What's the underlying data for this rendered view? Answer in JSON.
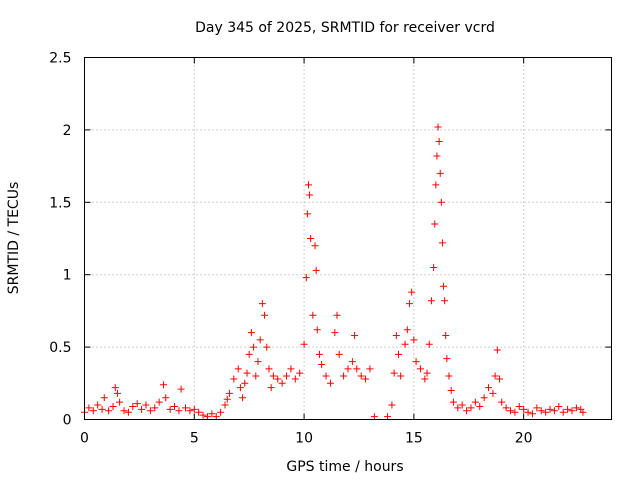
{
  "chart_data": {
    "type": "scatter",
    "title": "Day 345 of 2025, SRMTID for receiver vcrd",
    "xlabel": "GPS time / hours",
    "ylabel": "SRMTID / TECUs",
    "xlim": [
      0,
      24
    ],
    "ylim": [
      0,
      2.5
    ],
    "x_ticks": [
      0,
      5,
      10,
      15,
      20
    ],
    "x_tick_labels": [
      "0",
      "5",
      "10",
      "15",
      "20"
    ],
    "y_ticks": [
      0,
      0.5,
      1,
      1.5,
      2,
      2.5
    ],
    "y_tick_labels": [
      "0",
      "0.5",
      "1",
      "1.5",
      "2",
      "2.5"
    ],
    "grid": true,
    "marker": "+",
    "series_color": "#ff0000",
    "series": [
      {
        "name": "SRMTID",
        "points": [
          [
            0.0,
            0.05
          ],
          [
            0.2,
            0.08
          ],
          [
            0.4,
            0.06
          ],
          [
            0.6,
            0.1
          ],
          [
            0.8,
            0.07
          ],
          [
            0.9,
            0.15
          ],
          [
            1.1,
            0.06
          ],
          [
            1.3,
            0.09
          ],
          [
            1.4,
            0.22
          ],
          [
            1.5,
            0.18
          ],
          [
            1.6,
            0.12
          ],
          [
            1.8,
            0.06
          ],
          [
            2.0,
            0.05
          ],
          [
            2.2,
            0.09
          ],
          [
            2.4,
            0.11
          ],
          [
            2.6,
            0.07
          ],
          [
            2.8,
            0.1
          ],
          [
            3.0,
            0.06
          ],
          [
            3.2,
            0.08
          ],
          [
            3.4,
            0.12
          ],
          [
            3.6,
            0.24
          ],
          [
            3.7,
            0.15
          ],
          [
            3.9,
            0.07
          ],
          [
            4.1,
            0.09
          ],
          [
            4.3,
            0.06
          ],
          [
            4.4,
            0.21
          ],
          [
            4.6,
            0.08
          ],
          [
            4.8,
            0.06
          ],
          [
            5.0,
            0.07
          ],
          [
            5.2,
            0.05
          ],
          [
            5.4,
            0.03
          ],
          [
            5.6,
            0.02
          ],
          [
            5.8,
            0.04
          ],
          [
            6.0,
            0.02
          ],
          [
            6.2,
            0.05
          ],
          [
            6.4,
            0.1
          ],
          [
            6.5,
            0.14
          ],
          [
            6.6,
            0.18
          ],
          [
            6.8,
            0.28
          ],
          [
            7.0,
            0.35
          ],
          [
            7.1,
            0.22
          ],
          [
            7.2,
            0.15
          ],
          [
            7.3,
            0.25
          ],
          [
            7.4,
            0.32
          ],
          [
            7.5,
            0.45
          ],
          [
            7.6,
            0.6
          ],
          [
            7.7,
            0.5
          ],
          [
            7.8,
            0.3
          ],
          [
            7.9,
            0.4
          ],
          [
            8.0,
            0.55
          ],
          [
            8.1,
            0.8
          ],
          [
            8.2,
            0.72
          ],
          [
            8.3,
            0.5
          ],
          [
            8.4,
            0.35
          ],
          [
            8.5,
            0.22
          ],
          [
            8.6,
            0.3
          ],
          [
            8.8,
            0.28
          ],
          [
            9.0,
            0.25
          ],
          [
            9.2,
            0.3
          ],
          [
            9.4,
            0.35
          ],
          [
            9.6,
            0.28
          ],
          [
            9.8,
            0.32
          ],
          [
            10.0,
            0.52
          ],
          [
            10.1,
            0.98
          ],
          [
            10.15,
            1.42
          ],
          [
            10.2,
            1.62
          ],
          [
            10.25,
            1.55
          ],
          [
            10.3,
            1.25
          ],
          [
            10.4,
            0.72
          ],
          [
            10.5,
            1.2
          ],
          [
            10.55,
            1.03
          ],
          [
            10.6,
            0.62
          ],
          [
            10.7,
            0.45
          ],
          [
            10.8,
            0.38
          ],
          [
            11.0,
            0.3
          ],
          [
            11.2,
            0.25
          ],
          [
            11.4,
            0.6
          ],
          [
            11.5,
            0.72
          ],
          [
            11.6,
            0.45
          ],
          [
            11.8,
            0.3
          ],
          [
            12.0,
            0.35
          ],
          [
            12.2,
            0.4
          ],
          [
            12.3,
            0.58
          ],
          [
            12.4,
            0.35
          ],
          [
            12.6,
            0.3
          ],
          [
            12.8,
            0.28
          ],
          [
            13.0,
            0.35
          ],
          [
            13.2,
            0.02
          ],
          [
            13.8,
            0.02
          ],
          [
            14.0,
            0.1
          ],
          [
            14.1,
            0.32
          ],
          [
            14.2,
            0.58
          ],
          [
            14.3,
            0.45
          ],
          [
            14.4,
            0.3
          ],
          [
            14.6,
            0.52
          ],
          [
            14.7,
            0.62
          ],
          [
            14.8,
            0.8
          ],
          [
            14.9,
            0.88
          ],
          [
            15.0,
            0.55
          ],
          [
            15.1,
            0.4
          ],
          [
            15.3,
            0.35
          ],
          [
            15.5,
            0.28
          ],
          [
            15.6,
            0.32
          ],
          [
            15.7,
            0.52
          ],
          [
            15.8,
            0.82
          ],
          [
            15.9,
            1.05
          ],
          [
            15.95,
            1.35
          ],
          [
            16.0,
            1.62
          ],
          [
            16.05,
            1.82
          ],
          [
            16.1,
            2.02
          ],
          [
            16.15,
            1.92
          ],
          [
            16.2,
            1.7
          ],
          [
            16.25,
            1.5
          ],
          [
            16.3,
            1.22
          ],
          [
            16.35,
            0.92
          ],
          [
            16.4,
            0.82
          ],
          [
            16.45,
            0.58
          ],
          [
            16.5,
            0.42
          ],
          [
            16.6,
            0.3
          ],
          [
            16.7,
            0.2
          ],
          [
            16.8,
            0.12
          ],
          [
            17.0,
            0.08
          ],
          [
            17.2,
            0.1
          ],
          [
            17.4,
            0.06
          ],
          [
            17.6,
            0.08
          ],
          [
            17.8,
            0.12
          ],
          [
            18.0,
            0.09
          ],
          [
            18.2,
            0.15
          ],
          [
            18.4,
            0.22
          ],
          [
            18.6,
            0.18
          ],
          [
            18.7,
            0.3
          ],
          [
            18.8,
            0.48
          ],
          [
            18.9,
            0.28
          ],
          [
            19.0,
            0.12
          ],
          [
            19.2,
            0.08
          ],
          [
            19.4,
            0.06
          ],
          [
            19.6,
            0.05
          ],
          [
            19.8,
            0.09
          ],
          [
            20.0,
            0.07
          ],
          [
            20.2,
            0.05
          ],
          [
            20.4,
            0.04
          ],
          [
            20.6,
            0.08
          ],
          [
            20.8,
            0.06
          ],
          [
            21.0,
            0.05
          ],
          [
            21.2,
            0.07
          ],
          [
            21.4,
            0.06
          ],
          [
            21.6,
            0.09
          ],
          [
            21.8,
            0.05
          ],
          [
            22.0,
            0.07
          ],
          [
            22.2,
            0.06
          ],
          [
            22.4,
            0.08
          ],
          [
            22.6,
            0.07
          ],
          [
            22.7,
            0.05
          ]
        ]
      }
    ]
  }
}
